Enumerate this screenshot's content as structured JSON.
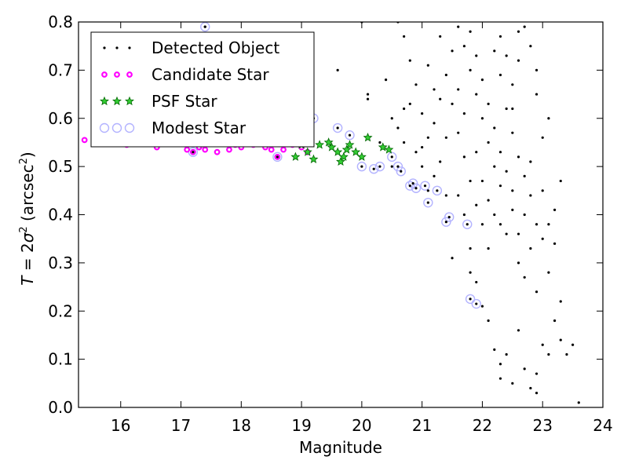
{
  "chart_data": {
    "type": "scatter",
    "xlabel": "Magnitude",
    "ylabel": {
      "prefix": "T",
      "eq": " = 2",
      "sym": "σ",
      "exp": "2",
      "unit_open": " (arcsec",
      "unit_exp": "2",
      "unit_close": ")"
    },
    "xlim": [
      15.3,
      24.0
    ],
    "ylim": [
      0.0,
      0.8
    ],
    "xticks": [
      16,
      17,
      18,
      19,
      20,
      21,
      22,
      23,
      24
    ],
    "yticks": [
      0.0,
      0.1,
      0.2,
      0.3,
      0.4,
      0.5,
      0.6,
      0.7,
      0.8
    ],
    "xtick_labels": [
      "16",
      "17",
      "18",
      "19",
      "20",
      "21",
      "22",
      "23",
      "24"
    ],
    "ytick_labels": [
      "0.0",
      "0.1",
      "0.2",
      "0.3",
      "0.4",
      "0.5",
      "0.6",
      "0.7",
      "0.8"
    ],
    "grid": false,
    "legend_position": "top-left",
    "series": [
      {
        "name": "Detected Object",
        "marker": "dot",
        "color": "#000000",
        "points": [
          [
            17.4,
            0.79
          ],
          [
            19.6,
            0.7
          ],
          [
            20.0,
            0.8
          ],
          [
            20.1,
            0.64
          ],
          [
            20.4,
            0.68
          ],
          [
            20.1,
            0.65
          ],
          [
            20.6,
            0.58
          ],
          [
            20.7,
            0.55
          ],
          [
            20.9,
            0.53
          ],
          [
            21.0,
            0.54
          ],
          [
            21.2,
            0.66
          ],
          [
            21.4,
            0.44
          ],
          [
            21.5,
            0.31
          ],
          [
            21.8,
            0.33
          ],
          [
            21.8,
            0.28
          ],
          [
            21.9,
            0.26
          ],
          [
            22.0,
            0.21
          ],
          [
            22.1,
            0.18
          ],
          [
            22.2,
            0.12
          ],
          [
            22.3,
            0.09
          ],
          [
            22.3,
            0.06
          ],
          [
            22.4,
            0.11
          ],
          [
            22.5,
            0.05
          ],
          [
            22.6,
            0.16
          ],
          [
            22.7,
            0.08
          ],
          [
            22.8,
            0.04
          ],
          [
            22.9,
            0.07
          ],
          [
            22.9,
            0.03
          ],
          [
            23.0,
            0.13
          ],
          [
            23.1,
            0.11
          ],
          [
            23.2,
            0.18
          ],
          [
            23.3,
            0.22
          ],
          [
            23.3,
            0.14
          ],
          [
            23.4,
            0.11
          ],
          [
            23.5,
            0.13
          ],
          [
            23.6,
            0.01
          ],
          [
            22.9,
            0.24
          ],
          [
            22.8,
            0.33
          ],
          [
            23.0,
            0.35
          ],
          [
            23.1,
            0.38
          ],
          [
            23.2,
            0.41
          ],
          [
            22.6,
            0.3
          ],
          [
            22.7,
            0.27
          ],
          [
            22.5,
            0.41
          ],
          [
            22.4,
            0.36
          ],
          [
            22.3,
            0.38
          ],
          [
            23.0,
            0.45
          ],
          [
            23.3,
            0.47
          ],
          [
            22.8,
            0.51
          ],
          [
            23.0,
            0.56
          ],
          [
            23.1,
            0.6
          ],
          [
            22.9,
            0.65
          ],
          [
            22.9,
            0.7
          ],
          [
            22.8,
            0.75
          ],
          [
            22.7,
            0.79
          ],
          [
            22.6,
            0.78
          ],
          [
            22.6,
            0.72
          ],
          [
            22.5,
            0.67
          ],
          [
            22.4,
            0.62
          ],
          [
            22.5,
            0.57
          ],
          [
            22.6,
            0.52
          ],
          [
            22.7,
            0.48
          ],
          [
            22.8,
            0.44
          ],
          [
            22.3,
            0.46
          ],
          [
            22.2,
            0.5
          ],
          [
            22.1,
            0.55
          ],
          [
            22.0,
            0.6
          ],
          [
            21.9,
            0.65
          ],
          [
            21.8,
            0.7
          ],
          [
            21.7,
            0.75
          ],
          [
            21.6,
            0.79
          ],
          [
            21.5,
            0.74
          ],
          [
            21.4,
            0.69
          ],
          [
            21.3,
            0.64
          ],
          [
            21.2,
            0.59
          ],
          [
            21.1,
            0.56
          ],
          [
            21.0,
            0.61
          ],
          [
            20.9,
            0.67
          ],
          [
            20.8,
            0.72
          ],
          [
            20.7,
            0.77
          ],
          [
            20.6,
            0.8
          ],
          [
            20.8,
            0.63
          ],
          [
            21.1,
            0.71
          ],
          [
            21.3,
            0.77
          ],
          [
            21.5,
            0.63
          ],
          [
            21.6,
            0.57
          ],
          [
            21.7,
            0.52
          ],
          [
            21.8,
            0.47
          ],
          [
            21.9,
            0.42
          ],
          [
            22.0,
            0.38
          ],
          [
            22.1,
            0.33
          ],
          [
            21.9,
            0.53
          ],
          [
            22.0,
            0.47
          ],
          [
            22.1,
            0.43
          ],
          [
            22.2,
            0.4
          ],
          [
            22.3,
            0.53
          ],
          [
            22.4,
            0.49
          ],
          [
            22.5,
            0.45
          ],
          [
            22.2,
            0.58
          ],
          [
            22.1,
            0.63
          ],
          [
            22.0,
            0.68
          ],
          [
            21.9,
            0.73
          ],
          [
            21.8,
            0.78
          ],
          [
            22.2,
            0.74
          ],
          [
            22.3,
            0.69
          ],
          [
            22.4,
            0.73
          ],
          [
            22.3,
            0.77
          ],
          [
            22.5,
            0.62
          ],
          [
            21.6,
            0.66
          ],
          [
            21.7,
            0.61
          ],
          [
            21.4,
            0.56
          ],
          [
            21.3,
            0.51
          ],
          [
            21.2,
            0.48
          ],
          [
            21.6,
            0.44
          ],
          [
            21.7,
            0.4
          ],
          [
            22.6,
            0.36
          ],
          [
            22.7,
            0.4
          ],
          [
            22.9,
            0.38
          ],
          [
            23.1,
            0.28
          ],
          [
            23.2,
            0.34
          ],
          [
            20.5,
            0.5
          ],
          [
            20.3,
            0.55
          ],
          [
            20.5,
            0.6
          ],
          [
            20.7,
            0.62
          ],
          [
            21.0,
            0.5
          ],
          [
            21.1,
            0.45
          ]
        ]
      },
      {
        "name": "Candidate Star",
        "marker": "dot-ring",
        "color": "#ff00ff",
        "points": [
          [
            15.4,
            0.555
          ],
          [
            15.6,
            0.56
          ],
          [
            16.1,
            0.545
          ],
          [
            16.6,
            0.54
          ],
          [
            17.1,
            0.535
          ],
          [
            17.2,
            0.53
          ],
          [
            17.4,
            0.535
          ],
          [
            17.6,
            0.53
          ],
          [
            17.8,
            0.535
          ],
          [
            18.0,
            0.54
          ],
          [
            18.2,
            0.545
          ],
          [
            18.4,
            0.54
          ],
          [
            18.6,
            0.52
          ],
          [
            18.7,
            0.535
          ],
          [
            18.85,
            0.545
          ],
          [
            19.0,
            0.54
          ],
          [
            19.1,
            0.53
          ],
          [
            17.3,
            0.54
          ],
          [
            17.9,
            0.545
          ],
          [
            18.5,
            0.535
          ]
        ]
      },
      {
        "name": "PSF Star",
        "marker": "star",
        "color": "#33cc33",
        "points": [
          [
            18.9,
            0.52
          ],
          [
            19.0,
            0.545
          ],
          [
            19.1,
            0.53
          ],
          [
            19.2,
            0.515
          ],
          [
            19.3,
            0.545
          ],
          [
            19.5,
            0.54
          ],
          [
            19.6,
            0.53
          ],
          [
            19.7,
            0.52
          ],
          [
            19.8,
            0.545
          ],
          [
            19.9,
            0.53
          ],
          [
            20.0,
            0.52
          ],
          [
            20.1,
            0.56
          ],
          [
            20.35,
            0.54
          ],
          [
            20.45,
            0.535
          ],
          [
            19.45,
            0.55
          ],
          [
            19.65,
            0.51
          ],
          [
            18.95,
            0.555
          ],
          [
            19.75,
            0.535
          ]
        ]
      },
      {
        "name": "Modest Star",
        "marker": "open-circle",
        "color": "#b3b3ff",
        "points": [
          [
            16.6,
            0.55
          ],
          [
            17.2,
            0.53
          ],
          [
            17.4,
            0.79
          ],
          [
            18.6,
            0.52
          ],
          [
            19.2,
            0.6
          ],
          [
            19.6,
            0.58
          ],
          [
            19.8,
            0.565
          ],
          [
            20.0,
            0.5
          ],
          [
            20.2,
            0.495
          ],
          [
            20.3,
            0.5
          ],
          [
            20.5,
            0.52
          ],
          [
            20.6,
            0.5
          ],
          [
            20.65,
            0.49
          ],
          [
            20.8,
            0.46
          ],
          [
            20.85,
            0.465
          ],
          [
            21.05,
            0.46
          ],
          [
            21.1,
            0.425
          ],
          [
            21.25,
            0.45
          ],
          [
            21.4,
            0.385
          ],
          [
            21.45,
            0.395
          ],
          [
            21.75,
            0.38
          ],
          [
            21.8,
            0.225
          ],
          [
            21.9,
            0.215
          ],
          [
            20.9,
            0.455
          ]
        ]
      }
    ]
  }
}
